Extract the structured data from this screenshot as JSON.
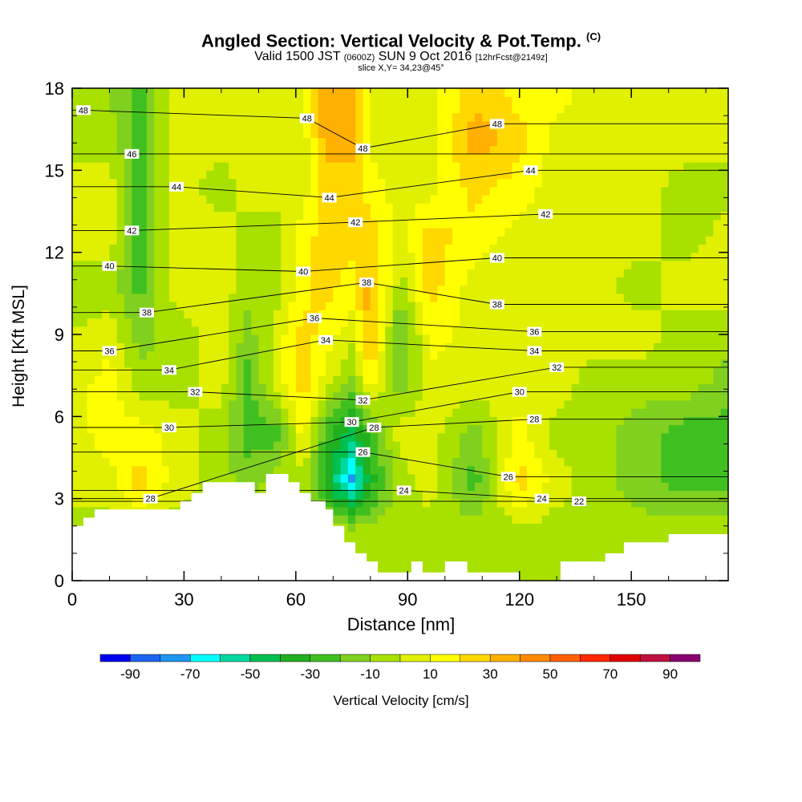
{
  "title": {
    "main": "Angled Section: Vertical Velocity & Pot.Temp.",
    "main_unit": "(C)",
    "valid_prefix": "Valid 1500 JST",
    "valid_utc": "(0600Z)",
    "valid_date": "SUN 9 Oct 2016",
    "fcst": "[12hrFcst@2149z]",
    "slice": "slice X,Y= 34,23@45°"
  },
  "chart_data": {
    "type": "heatmap",
    "xlabel": "Distance [nm]",
    "ylabel": "Height [Kft MSL]",
    "xlim": [
      0,
      176
    ],
    "ylim": [
      0,
      18
    ],
    "x_ticks": [
      "0",
      "30",
      "60",
      "90",
      "120",
      "150"
    ],
    "y_ticks": [
      "0",
      "3",
      "6",
      "9",
      "12",
      "15",
      "18"
    ],
    "colorbar": {
      "title": "Vertical Velocity [cm/s]",
      "tick_labels": [
        "-90",
        "-70",
        "-50",
        "-30",
        "-10",
        "10",
        "30",
        "50",
        "70",
        "90"
      ],
      "bins": [
        -100,
        -90,
        -80,
        -70,
        -60,
        -50,
        -40,
        -30,
        -20,
        -10,
        0,
        10,
        20,
        30,
        40,
        50,
        60,
        70,
        80,
        90,
        100
      ],
      "colors": [
        "#0000f0",
        "#1e64f0",
        "#1e96f0",
        "#00ffff",
        "#00d8a0",
        "#00c050",
        "#20b020",
        "#40c020",
        "#80d020",
        "#a8e000",
        "#e0f000",
        "#ffff00",
        "#ffd800",
        "#ffb000",
        "#ff8800",
        "#ff6000",
        "#ff2800",
        "#e00000",
        "#c01040",
        "#8a0070",
        "#6000a0"
      ]
    },
    "contour_variable": "Potential temperature (C)",
    "contour_labels": [
      {
        "value": "48",
        "x": 3,
        "y": 17.2
      },
      {
        "value": "48",
        "x": 63,
        "y": 16.9
      },
      {
        "value": "48",
        "x": 78,
        "y": 15.8
      },
      {
        "value": "48",
        "x": 114,
        "y": 16.7
      },
      {
        "value": "46",
        "x": 16,
        "y": 15.6
      },
      {
        "value": "44",
        "x": 28,
        "y": 14.4
      },
      {
        "value": "44",
        "x": 69,
        "y": 14.0
      },
      {
        "value": "44",
        "x": 123,
        "y": 15.0
      },
      {
        "value": "42",
        "x": 16,
        "y": 12.8
      },
      {
        "value": "42",
        "x": 76,
        "y": 13.1
      },
      {
        "value": "42",
        "x": 127,
        "y": 13.4
      },
      {
        "value": "40",
        "x": 10,
        "y": 11.5
      },
      {
        "value": "40",
        "x": 62,
        "y": 11.3
      },
      {
        "value": "40",
        "x": 114,
        "y": 11.8
      },
      {
        "value": "38",
        "x": 20,
        "y": 9.8
      },
      {
        "value": "38",
        "x": 79,
        "y": 10.9
      },
      {
        "value": "38",
        "x": 114,
        "y": 10.1
      },
      {
        "value": "36",
        "x": 10,
        "y": 8.4
      },
      {
        "value": "36",
        "x": 65,
        "y": 9.6
      },
      {
        "value": "36",
        "x": 124,
        "y": 9.1
      },
      {
        "value": "34",
        "x": 26,
        "y": 7.7
      },
      {
        "value": "34",
        "x": 68,
        "y": 8.8
      },
      {
        "value": "34",
        "x": 124,
        "y": 8.4
      },
      {
        "value": "32",
        "x": 33,
        "y": 6.9
      },
      {
        "value": "32",
        "x": 78,
        "y": 6.6
      },
      {
        "value": "32",
        "x": 130,
        "y": 7.8
      },
      {
        "value": "30",
        "x": 26,
        "y": 5.6
      },
      {
        "value": "30",
        "x": 75,
        "y": 5.8
      },
      {
        "value": "30",
        "x": 120,
        "y": 6.9
      },
      {
        "value": "28",
        "x": 21,
        "y": 3.0
      },
      {
        "value": "28",
        "x": 81,
        "y": 5.6
      },
      {
        "value": "28",
        "x": 124,
        "y": 5.9
      },
      {
        "value": "26",
        "x": 78,
        "y": 4.7
      },
      {
        "value": "26",
        "x": 117,
        "y": 3.8
      },
      {
        "value": "24",
        "x": 89,
        "y": 3.3
      },
      {
        "value": "24",
        "x": 126,
        "y": 3.0
      },
      {
        "value": "22",
        "x": 136,
        "y": 2.9
      }
    ],
    "terrain": [
      [
        0,
        2.0
      ],
      [
        3,
        2.0
      ],
      [
        3,
        2.3
      ],
      [
        6,
        2.3
      ],
      [
        6,
        2.6
      ],
      [
        29,
        2.6
      ],
      [
        29,
        2.9
      ],
      [
        32,
        2.9
      ],
      [
        32,
        3.2
      ],
      [
        35,
        3.2
      ],
      [
        35,
        3.6
      ],
      [
        49,
        3.6
      ],
      [
        49,
        3.2
      ],
      [
        52,
        3.2
      ],
      [
        52,
        3.9
      ],
      [
        58,
        3.9
      ],
      [
        58,
        3.6
      ],
      [
        61,
        3.6
      ],
      [
        61,
        3.2
      ],
      [
        64,
        3.2
      ],
      [
        64,
        2.9
      ],
      [
        68,
        2.9
      ],
      [
        68,
        2.6
      ],
      [
        70,
        2.6
      ],
      [
        70,
        2.0
      ],
      [
        73,
        2.0
      ],
      [
        73,
        1.4
      ],
      [
        76,
        1.4
      ],
      [
        76,
        1.0
      ],
      [
        79,
        1.0
      ],
      [
        79,
        0.7
      ],
      [
        82,
        0.7
      ],
      [
        82,
        0.3
      ],
      [
        91,
        0.3
      ],
      [
        91,
        0.7
      ],
      [
        94,
        0.7
      ],
      [
        94,
        0.3
      ],
      [
        100,
        0.3
      ],
      [
        100,
        0.7
      ],
      [
        106,
        0.7
      ],
      [
        106,
        0.3
      ],
      [
        120,
        0.3
      ],
      [
        120,
        0.0
      ],
      [
        131,
        0.0
      ],
      [
        131,
        0.7
      ],
      [
        143,
        0.7
      ],
      [
        143,
        1.0
      ],
      [
        148,
        1.0
      ],
      [
        148,
        1.4
      ],
      [
        160,
        1.4
      ],
      [
        160,
        1.7
      ],
      [
        176,
        1.7
      ]
    ],
    "velocity_field_cm_s": [
      {
        "x": 0,
        "profile": [
          -5,
          -5,
          5,
          5,
          5,
          0,
          -5,
          5,
          5,
          -5,
          -5
        ]
      },
      {
        "x": 10,
        "profile": [
          -5,
          -5,
          5,
          15,
          15,
          5,
          -5,
          5,
          5,
          -5,
          -10
        ]
      },
      {
        "x": 18,
        "profile": [
          -5,
          -5,
          25,
          15,
          -5,
          -15,
          -25,
          -25,
          -25,
          -25,
          -25
        ]
      },
      {
        "x": 28,
        "profile": [
          -5,
          -5,
          5,
          5,
          -5,
          -5,
          5,
          5,
          5,
          5,
          5
        ]
      },
      {
        "x": 40,
        "profile": [
          -5,
          -5,
          -5,
          -5,
          5,
          5,
          5,
          5,
          -5,
          5,
          5
        ]
      },
      {
        "x": 47,
        "profile": [
          -5,
          -5,
          -15,
          -25,
          -25,
          -15,
          -5,
          -5,
          5,
          5,
          5
        ]
      },
      {
        "x": 55,
        "profile": [
          -5,
          -5,
          -5,
          -25,
          5,
          5,
          -5,
          -5,
          5,
          5,
          5
        ]
      },
      {
        "x": 62,
        "profile": [
          -5,
          -5,
          -5,
          15,
          25,
          25,
          15,
          15,
          5,
          5,
          5
        ]
      },
      {
        "x": 68,
        "profile": [
          -5,
          -5,
          -35,
          -25,
          5,
          15,
          25,
          25,
          25,
          35,
          35
        ]
      },
      {
        "x": 75,
        "profile": [
          -5,
          -5,
          -75,
          -45,
          -15,
          5,
          15,
          25,
          25,
          35,
          35
        ]
      },
      {
        "x": 80,
        "profile": [
          -5,
          -5,
          -35,
          -25,
          15,
          35,
          35,
          25,
          15,
          5,
          5
        ]
      },
      {
        "x": 88,
        "profile": [
          -5,
          -5,
          -5,
          5,
          -15,
          -25,
          -5,
          5,
          5,
          5,
          5
        ]
      },
      {
        "x": 96,
        "profile": [
          -5,
          -5,
          5,
          5,
          5,
          15,
          25,
          25,
          5,
          5,
          5
        ]
      },
      {
        "x": 108,
        "profile": [
          -5,
          -5,
          -25,
          -15,
          5,
          5,
          5,
          15,
          25,
          35,
          25
        ]
      },
      {
        "x": 120,
        "profile": [
          -5,
          -5,
          25,
          15,
          5,
          5,
          5,
          5,
          15,
          25,
          15
        ]
      },
      {
        "x": 130,
        "profile": [
          -5,
          -5,
          5,
          -5,
          5,
          5,
          5,
          5,
          5,
          5,
          15
        ]
      },
      {
        "x": 140,
        "profile": [
          -5,
          -5,
          -5,
          -5,
          -5,
          5,
          5,
          5,
          5,
          5,
          5
        ]
      },
      {
        "x": 152,
        "profile": [
          -5,
          -5,
          -15,
          -15,
          -5,
          5,
          -5,
          5,
          5,
          5,
          5
        ]
      },
      {
        "x": 165,
        "profile": [
          -5,
          -5,
          -25,
          -25,
          -5,
          -5,
          5,
          -5,
          -5,
          5,
          5
        ]
      },
      {
        "x": 176,
        "profile": [
          -5,
          -5,
          -25,
          -25,
          -15,
          -5,
          5,
          5,
          -5,
          5,
          5
        ]
      }
    ]
  }
}
